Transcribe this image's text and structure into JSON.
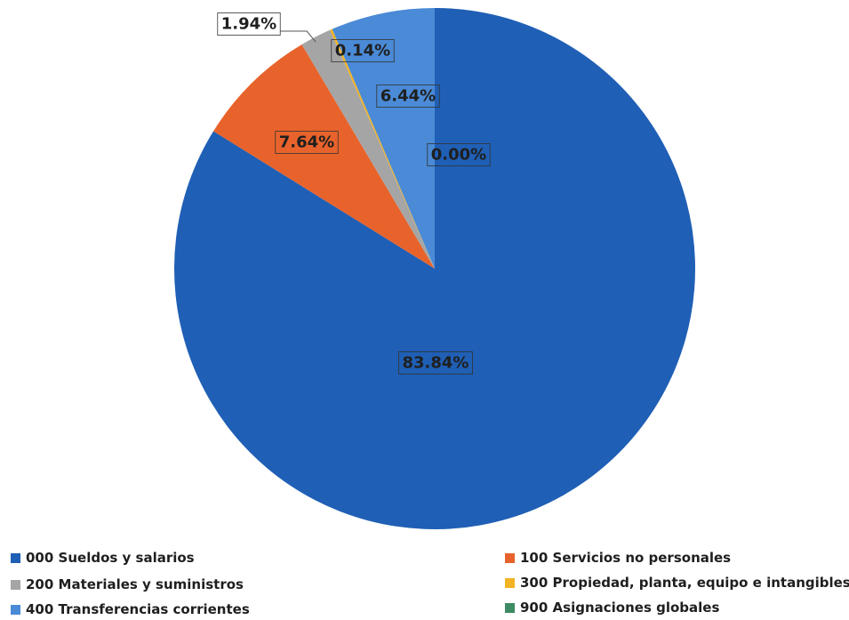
{
  "chart_data": {
    "type": "pie",
    "title": "",
    "slices": [
      {
        "name": "000 Sueldos y salarios",
        "value": 83.84,
        "label": "83.84%",
        "color": "#1F5FB5"
      },
      {
        "name": "100 Servicios no personales",
        "value": 7.64,
        "label": "7.64%",
        "color": "#E8632B"
      },
      {
        "name": "200 Materiales y suministros",
        "value": 1.94,
        "label": "1.94%",
        "color": "#A5A5A5"
      },
      {
        "name": "300 Propiedad, planta, equipo e intangibles",
        "value": 0.14,
        "label": "0.14%",
        "color": "#F2B324"
      },
      {
        "name": "400 Transferencias corrientes",
        "value": 6.44,
        "label": "6.44%",
        "color": "#4A8AD6"
      },
      {
        "name": "900 Asignaciones globales",
        "value": 0.0,
        "label": "0.00%",
        "color": "#3E8B63"
      }
    ],
    "legend": {
      "position": "bottom",
      "items": [
        {
          "label": "000 Sueldos y salarios",
          "color": "#1F5FB5"
        },
        {
          "label": "100 Servicios no personales",
          "color": "#E8632B"
        },
        {
          "label": "200 Materiales y suministros",
          "color": "#A5A5A5"
        },
        {
          "label": "300 Propiedad, planta, equipo e intangibles",
          "color": "#F2B324"
        },
        {
          "label": "400 Transferencias corrientes",
          "color": "#4A8AD6"
        },
        {
          "label": "900 Asignaciones globales",
          "color": "#3E8B63"
        }
      ]
    }
  }
}
